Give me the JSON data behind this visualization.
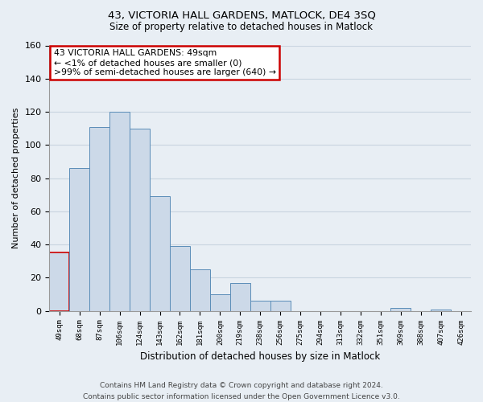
{
  "title1": "43, VICTORIA HALL GARDENS, MATLOCK, DE4 3SQ",
  "title2": "Size of property relative to detached houses in Matlock",
  "xlabel": "Distribution of detached houses by size in Matlock",
  "ylabel": "Number of detached properties",
  "categories": [
    "49sqm",
    "68sqm",
    "87sqm",
    "106sqm",
    "124sqm",
    "143sqm",
    "162sqm",
    "181sqm",
    "200sqm",
    "219sqm",
    "238sqm",
    "256sqm",
    "275sqm",
    "294sqm",
    "313sqm",
    "332sqm",
    "351sqm",
    "369sqm",
    "388sqm",
    "407sqm",
    "426sqm"
  ],
  "values": [
    35,
    86,
    111,
    120,
    110,
    69,
    39,
    25,
    10,
    17,
    6,
    6,
    0,
    0,
    0,
    0,
    0,
    2,
    0,
    1,
    0
  ],
  "bar_color": "#ccd9e8",
  "bar_edge_color": "#5b8db8",
  "highlight_edge_color": "#cc0000",
  "ylim": [
    0,
    160
  ],
  "yticks": [
    0,
    20,
    40,
    60,
    80,
    100,
    120,
    140,
    160
  ],
  "annotation_line1": "43 VICTORIA HALL GARDENS: 49sqm",
  "annotation_line2": "← <1% of detached houses are smaller (0)",
  "annotation_line3": ">99% of semi-detached houses are larger (640) →",
  "annotation_box_color": "#ffffff",
  "annotation_box_edge_color": "#cc0000",
  "footer1": "Contains HM Land Registry data © Crown copyright and database right 2024.",
  "footer2": "Contains public sector information licensed under the Open Government Licence v3.0.",
  "grid_color": "#c8d4e0",
  "background_color": "#e8eef4",
  "plot_bg_color": "#e8eef4"
}
